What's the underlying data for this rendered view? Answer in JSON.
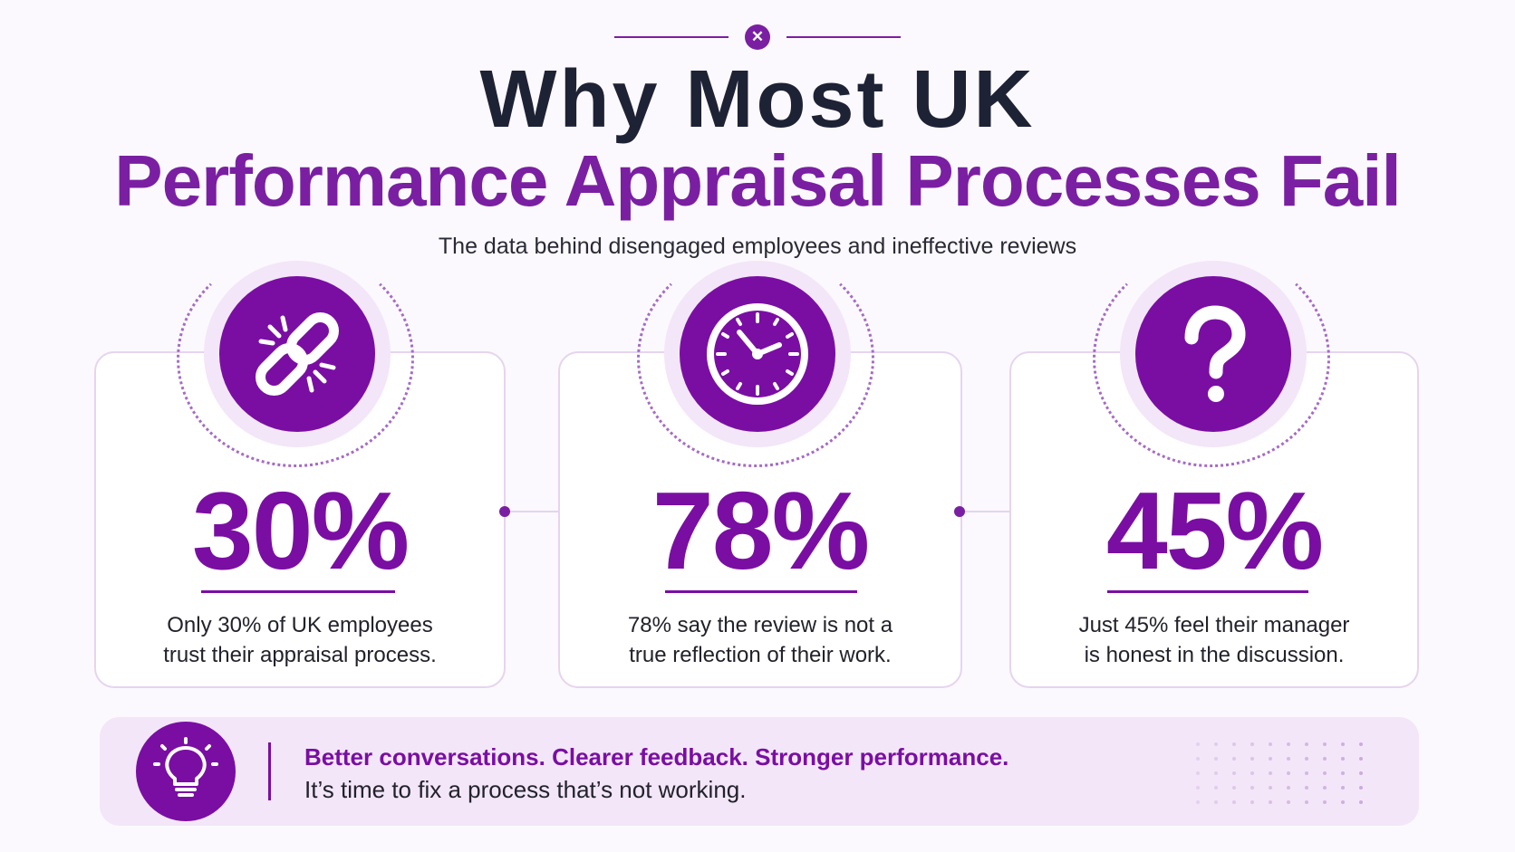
{
  "title_line1": "Why Most UK",
  "title_line2": "Performance Appraisal Processes Fail",
  "subtitle": "The data behind disengaged employees and ineffective reviews",
  "accent_color": "#7a0ea3",
  "stats": [
    {
      "icon": "broken-link-icon",
      "value": "30%",
      "line1": "Only 30% of UK employees",
      "line2": "trust their appraisal process."
    },
    {
      "icon": "clock-icon",
      "value": "78%",
      "line1": "78% say the review is not a",
      "line2": "true reflection of their work."
    },
    {
      "icon": "question-mark-icon",
      "value": "45%",
      "line1": "Just 45% feel their manager",
      "line2": "is honest in the discussion."
    }
  ],
  "banner": {
    "icon": "lightbulb-icon",
    "headline": "Better conversations. Clearer feedback. Stronger performance.",
    "body": "It’s time to fix a process that’s not working."
  }
}
